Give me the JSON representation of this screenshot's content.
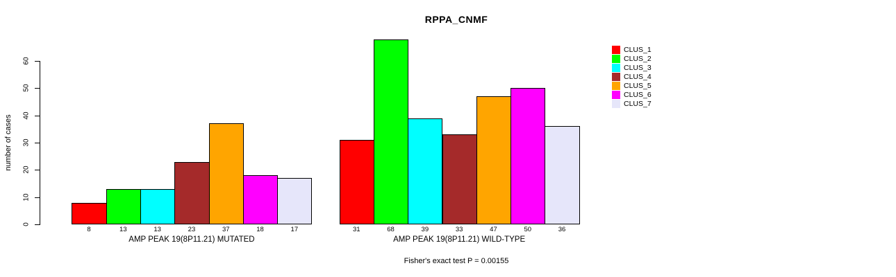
{
  "chart_data": {
    "type": "bar",
    "title": "RPPA_CNMF",
    "ylabel": "number of cases",
    "ylim": [
      0,
      60
    ],
    "yticks": [
      0,
      10,
      20,
      30,
      40,
      50,
      60
    ],
    "grid": false,
    "legend_position": "right",
    "clusters": [
      {
        "name": "CLUS_1",
        "color": "#FF0000"
      },
      {
        "name": "CLUS_2",
        "color": "#00FF00"
      },
      {
        "name": "CLUS_3",
        "color": "#00FFFF"
      },
      {
        "name": "CLUS_4",
        "color": "#A52A2A"
      },
      {
        "name": "CLUS_5",
        "color": "#FFA500"
      },
      {
        "name": "CLUS_6",
        "color": "#FF00FF"
      },
      {
        "name": "CLUS_7",
        "color": "#E6E6FA"
      }
    ],
    "groups": [
      {
        "label": "AMP PEAK 19(8P11.21) MUTATED",
        "values": [
          8,
          13,
          13,
          23,
          37,
          18,
          17
        ]
      },
      {
        "label": "AMP PEAK 19(8P11.21) WILD-TYPE",
        "values": [
          31,
          68,
          39,
          33,
          47,
          50,
          36
        ]
      }
    ],
    "bar_value_labels_shown": true,
    "annotation": "Fisher's exact test P = 0.00155"
  }
}
